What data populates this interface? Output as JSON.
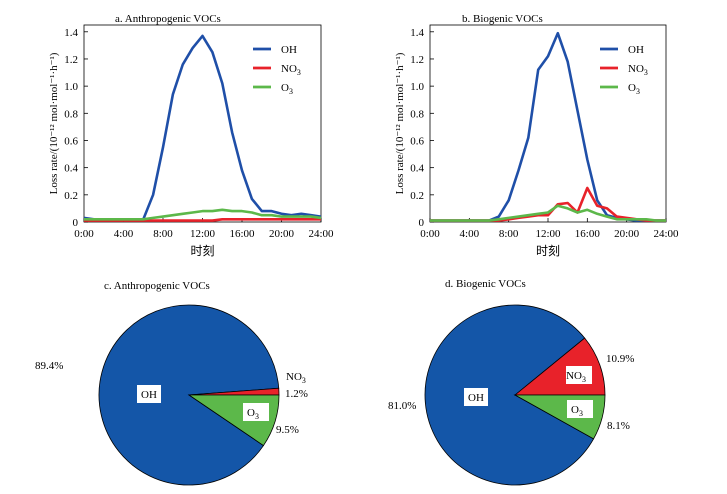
{
  "colors": {
    "OH": "#1f4fa8",
    "NO3": "#e8222a",
    "O3": "#5cb84a",
    "pie_OH": "#1456a8"
  },
  "chart_data": [
    {
      "id": "a",
      "type": "line",
      "title": "a. Anthropogenic VOCs",
      "xlabel": "时刻",
      "ylabel": "Loss rate/(10⁻¹² mol·mol⁻¹·h⁻¹)",
      "ylim": [
        0,
        1.45
      ],
      "yticks": [
        0,
        0.2,
        0.4,
        0.6,
        0.8,
        1.0,
        1.2,
        1.4
      ],
      "ytick_labels": [
        "0",
        "0.2",
        "0.4",
        "0.6",
        "0.8",
        "1.0",
        "1.2",
        "1.4"
      ],
      "xlim": [
        0,
        24
      ],
      "xticks": [
        0,
        4,
        8,
        12,
        16,
        20,
        24
      ],
      "xtick_labels": [
        "0:00",
        "4:00",
        "8:00",
        "12:00",
        "16:00",
        "20:00",
        "24:00"
      ],
      "x": [
        0,
        1,
        2,
        3,
        4,
        5,
        6,
        7,
        8,
        9,
        10,
        11,
        12,
        13,
        14,
        15,
        16,
        17,
        18,
        19,
        20,
        21,
        22,
        23,
        24
      ],
      "series": [
        {
          "name": "OH",
          "values": [
            0.03,
            0.02,
            0.02,
            0.02,
            0.02,
            0.02,
            0.02,
            0.2,
            0.55,
            0.94,
            1.16,
            1.28,
            1.37,
            1.25,
            1.02,
            0.66,
            0.38,
            0.17,
            0.08,
            0.08,
            0.06,
            0.05,
            0.06,
            0.05,
            0.04
          ]
        },
        {
          "name": "NO3",
          "values": [
            0.01,
            0.01,
            0.01,
            0.01,
            0.01,
            0.01,
            0.01,
            0.01,
            0.01,
            0.01,
            0.01,
            0.01,
            0.01,
            0.01,
            0.02,
            0.02,
            0.02,
            0.02,
            0.02,
            0.02,
            0.02,
            0.02,
            0.02,
            0.02,
            0.02
          ]
        },
        {
          "name": "O3",
          "values": [
            0.02,
            0.02,
            0.02,
            0.02,
            0.02,
            0.02,
            0.02,
            0.03,
            0.04,
            0.05,
            0.06,
            0.07,
            0.08,
            0.08,
            0.09,
            0.08,
            0.08,
            0.07,
            0.05,
            0.05,
            0.04,
            0.04,
            0.04,
            0.04,
            0.03
          ]
        }
      ],
      "legend": {
        "position": "top-right",
        "labels": [
          "OH",
          "NO",
          "O"
        ],
        "subs": [
          "",
          "3",
          "3"
        ]
      }
    },
    {
      "id": "b",
      "type": "line",
      "title": "b. Biogenic VOCs",
      "xlabel": "时刻",
      "ylabel": "Loss rate/(10⁻¹² mol·mol⁻¹·h⁻¹)",
      "ylim": [
        0,
        1.45
      ],
      "yticks": [
        0,
        0.2,
        0.4,
        0.6,
        0.8,
        1.0,
        1.2,
        1.4
      ],
      "ytick_labels": [
        "0",
        "0.2",
        "0.4",
        "0.6",
        "0.8",
        "1.0",
        "1.2",
        "1.4"
      ],
      "xlim": [
        0,
        24
      ],
      "xticks": [
        0,
        4,
        8,
        12,
        16,
        20,
        24
      ],
      "xtick_labels": [
        "0:00",
        "4:00",
        "8:00",
        "12:00",
        "16:00",
        "20:00",
        "24:00"
      ],
      "x": [
        0,
        1,
        2,
        3,
        4,
        5,
        6,
        7,
        8,
        9,
        10,
        11,
        12,
        13,
        14,
        15,
        16,
        17,
        18,
        19,
        20,
        21,
        22,
        23,
        24
      ],
      "series": [
        {
          "name": "OH",
          "values": [
            0.01,
            0.01,
            0.01,
            0.01,
            0.01,
            0.01,
            0.01,
            0.04,
            0.16,
            0.38,
            0.62,
            1.12,
            1.22,
            1.39,
            1.18,
            0.82,
            0.46,
            0.16,
            0.05,
            0.03,
            0.02,
            0.01,
            0.01,
            0.01,
            0.01
          ]
        },
        {
          "name": "NO3",
          "values": [
            0.01,
            0.01,
            0.01,
            0.01,
            0.01,
            0.01,
            0.01,
            0.01,
            0.02,
            0.03,
            0.04,
            0.05,
            0.05,
            0.13,
            0.14,
            0.07,
            0.25,
            0.12,
            0.1,
            0.04,
            0.03,
            0.02,
            0.01,
            0.01,
            0.01
          ]
        },
        {
          "name": "O3",
          "values": [
            0.01,
            0.01,
            0.01,
            0.01,
            0.01,
            0.01,
            0.01,
            0.02,
            0.03,
            0.04,
            0.05,
            0.06,
            0.07,
            0.12,
            0.1,
            0.07,
            0.09,
            0.06,
            0.04,
            0.02,
            0.02,
            0.02,
            0.02,
            0.01,
            0.01
          ]
        }
      ],
      "legend": {
        "position": "top-right",
        "labels": [
          "OH",
          "NO",
          "O"
        ],
        "subs": [
          "",
          "3",
          "3"
        ]
      }
    },
    {
      "id": "c",
      "type": "pie",
      "title": "c. Anthropogenic VOCs",
      "slices": [
        {
          "name": "OH",
          "value": 89.4,
          "label": "89.4%"
        },
        {
          "name": "NO3",
          "value": 1.2,
          "label": "1.2%"
        },
        {
          "name": "O3",
          "value": 9.5,
          "label": "9.5%"
        }
      ],
      "slice_names": [
        "OH",
        "NO",
        "O"
      ],
      "slice_subs": [
        "",
        "3",
        "3"
      ]
    },
    {
      "id": "d",
      "type": "pie",
      "title": "d. Biogenic VOCs",
      "slices": [
        {
          "name": "OH",
          "value": 81.0,
          "label": "81.0%"
        },
        {
          "name": "NO3",
          "value": 10.9,
          "label": "10.9%"
        },
        {
          "name": "O3",
          "value": 8.1,
          "label": "8.1%"
        }
      ],
      "slice_names": [
        "OH",
        "NO",
        "O"
      ],
      "slice_subs": [
        "",
        "3",
        "3"
      ]
    }
  ]
}
